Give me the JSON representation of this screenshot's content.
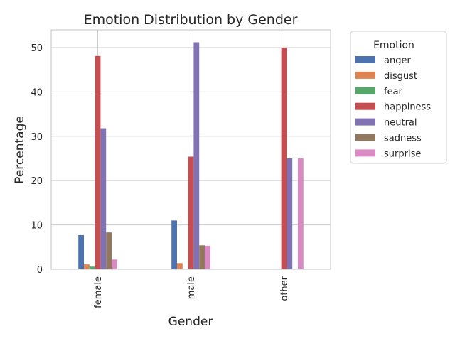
{
  "chart_data": {
    "type": "bar",
    "title": "Emotion Distribution by Gender",
    "xlabel": "Gender",
    "ylabel": "Percentage",
    "categories": [
      "female",
      "male",
      "other"
    ],
    "ylim": [
      0,
      54
    ],
    "yticks": [
      0,
      10,
      20,
      30,
      40,
      50
    ],
    "grid": true,
    "legend": {
      "title": "Emotion",
      "placement": "outside-top-right"
    },
    "series": [
      {
        "name": "anger",
        "color": "#4c72b0",
        "values": [
          7.7,
          11.0,
          0
        ]
      },
      {
        "name": "disgust",
        "color": "#dd8452",
        "values": [
          1.1,
          1.4,
          0
        ]
      },
      {
        "name": "fear",
        "color": "#55a868",
        "values": [
          0.6,
          0,
          0
        ]
      },
      {
        "name": "happiness",
        "color": "#c44e52",
        "values": [
          48.1,
          25.4,
          50.0
        ]
      },
      {
        "name": "neutral",
        "color": "#8172b3",
        "values": [
          31.8,
          51.2,
          25.0
        ]
      },
      {
        "name": "sadness",
        "color": "#937860",
        "values": [
          8.3,
          5.4,
          0
        ]
      },
      {
        "name": "surprise",
        "color": "#da8bc3",
        "values": [
          2.2,
          5.3,
          25.0
        ]
      }
    ]
  }
}
